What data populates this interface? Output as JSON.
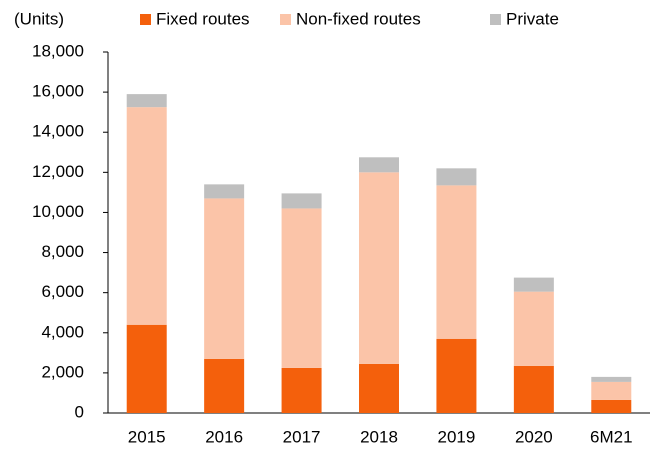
{
  "chart_data": {
    "type": "stacked_bar",
    "y_label": "(Units)",
    "categories": [
      "2015",
      "2016",
      "2017",
      "2018",
      "2019",
      "2020",
      "6M21"
    ],
    "series": [
      {
        "name": "Fixed routes",
        "color": "#f4600c",
        "values": [
          4400,
          2700,
          2250,
          2450,
          3700,
          2350,
          650
        ]
      },
      {
        "name": "Non-fixed routes",
        "color": "#fbc4a8",
        "values": [
          10850,
          8000,
          7950,
          9550,
          7650,
          3700,
          900
        ]
      },
      {
        "name": "Private",
        "color": "#bfbfbf",
        "values": [
          650,
          700,
          750,
          750,
          850,
          700,
          250
        ]
      }
    ],
    "ylim": [
      0,
      18000
    ],
    "yticks": [
      0,
      {
        "value": 2000,
        "label": "2,000"
      },
      {
        "value": 4000,
        "label": "4,000"
      },
      {
        "value": 6000,
        "label": "6,000"
      },
      {
        "value": 8000,
        "label": "8,000"
      },
      {
        "value": 10000,
        "label": "10,000"
      },
      {
        "value": 12000,
        "label": "12,000"
      },
      {
        "value": 14000,
        "label": "14,000"
      },
      {
        "value": 16000,
        "label": "16,000"
      },
      {
        "value": 18000,
        "label": "18,000"
      }
    ],
    "legend": "top"
  }
}
